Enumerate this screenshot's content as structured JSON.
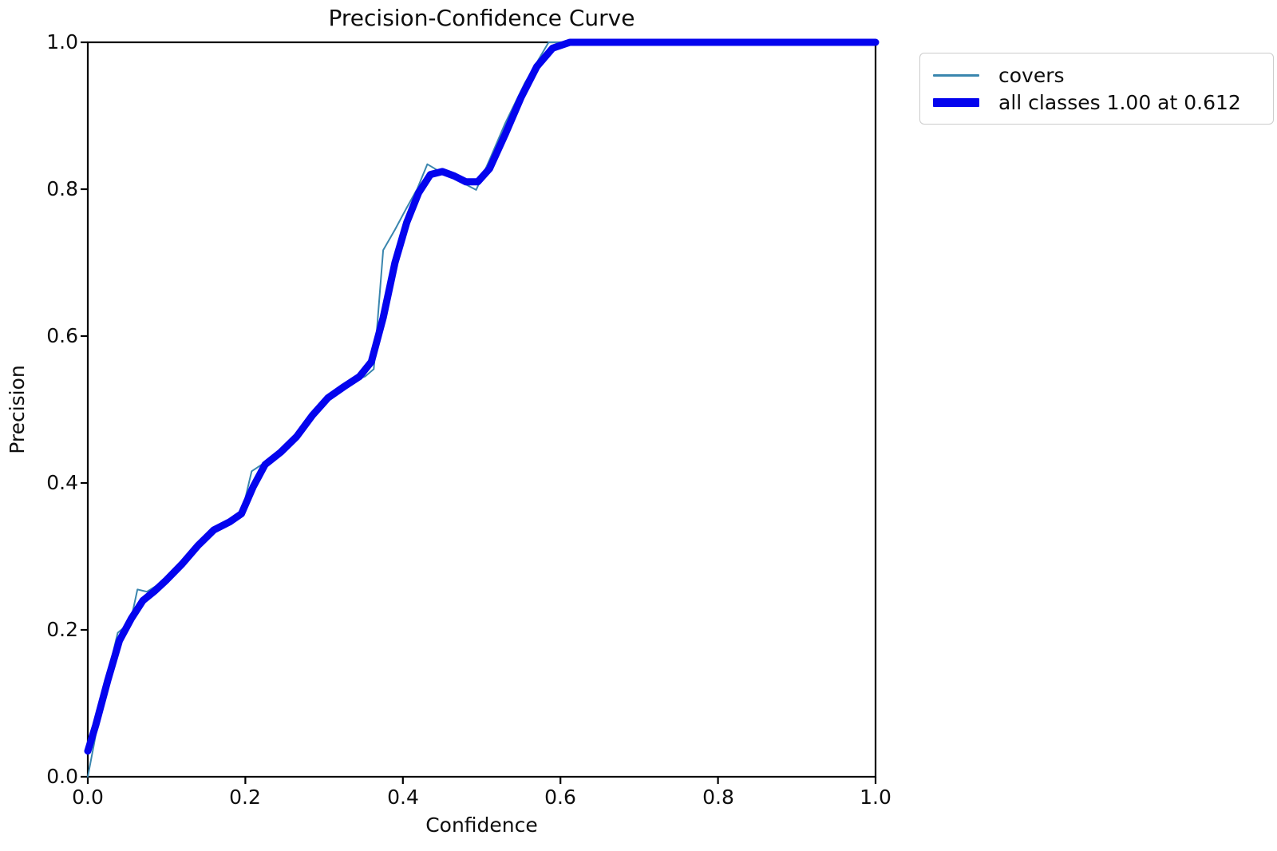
{
  "chart_data": {
    "type": "line",
    "title": "Precision-Confidence Curve",
    "xlabel": "Confidence",
    "ylabel": "Precision",
    "xlim": [
      0.0,
      1.0
    ],
    "ylim": [
      0.0,
      1.0
    ],
    "x_tick_labels": [
      "0.0",
      "0.2",
      "0.4",
      "0.6",
      "0.8",
      "1.0"
    ],
    "y_tick_labels": [
      "0.0",
      "0.2",
      "0.4",
      "0.6",
      "0.8",
      "1.0"
    ],
    "grid": false,
    "legend_position": "outside-top-right",
    "axis_color": "#000000",
    "legend_border_color": "#cccccc",
    "series": [
      {
        "name": "covers",
        "color": "#3a86ae",
        "line_width": 2,
        "points": [
          [
            0.0,
            0.0
          ],
          [
            0.008,
            0.045
          ],
          [
            0.018,
            0.105
          ],
          [
            0.03,
            0.16
          ],
          [
            0.038,
            0.196
          ],
          [
            0.048,
            0.205
          ],
          [
            0.055,
            0.215
          ],
          [
            0.063,
            0.255
          ],
          [
            0.075,
            0.252
          ],
          [
            0.09,
            0.262
          ],
          [
            0.11,
            0.283
          ],
          [
            0.13,
            0.3
          ],
          [
            0.15,
            0.33
          ],
          [
            0.165,
            0.34
          ],
          [
            0.18,
            0.344
          ],
          [
            0.195,
            0.357
          ],
          [
            0.208,
            0.416
          ],
          [
            0.225,
            0.428
          ],
          [
            0.245,
            0.442
          ],
          [
            0.265,
            0.465
          ],
          [
            0.285,
            0.495
          ],
          [
            0.305,
            0.517
          ],
          [
            0.325,
            0.532
          ],
          [
            0.34,
            0.54
          ],
          [
            0.352,
            0.545
          ],
          [
            0.363,
            0.555
          ],
          [
            0.375,
            0.717
          ],
          [
            0.39,
            0.745
          ],
          [
            0.405,
            0.775
          ],
          [
            0.418,
            0.8
          ],
          [
            0.431,
            0.834
          ],
          [
            0.45,
            0.822
          ],
          [
            0.47,
            0.812
          ],
          [
            0.493,
            0.799
          ],
          [
            0.51,
            0.84
          ],
          [
            0.53,
            0.89
          ],
          [
            0.555,
            0.945
          ],
          [
            0.585,
            1.0
          ],
          [
            1.0,
            1.0
          ]
        ]
      },
      {
        "name": "all classes 1.00 at 0.612",
        "color": "#0404ee",
        "line_width": 9,
        "points": [
          [
            0.0,
            0.035
          ],
          [
            0.01,
            0.07
          ],
          [
            0.025,
            0.13
          ],
          [
            0.04,
            0.185
          ],
          [
            0.055,
            0.215
          ],
          [
            0.07,
            0.24
          ],
          [
            0.085,
            0.253
          ],
          [
            0.1,
            0.268
          ],
          [
            0.12,
            0.29
          ],
          [
            0.14,
            0.315
          ],
          [
            0.16,
            0.336
          ],
          [
            0.18,
            0.347
          ],
          [
            0.195,
            0.358
          ],
          [
            0.21,
            0.395
          ],
          [
            0.225,
            0.425
          ],
          [
            0.245,
            0.442
          ],
          [
            0.265,
            0.463
          ],
          [
            0.285,
            0.492
          ],
          [
            0.305,
            0.516
          ],
          [
            0.325,
            0.531
          ],
          [
            0.345,
            0.545
          ],
          [
            0.36,
            0.565
          ],
          [
            0.375,
            0.625
          ],
          [
            0.39,
            0.7
          ],
          [
            0.405,
            0.755
          ],
          [
            0.42,
            0.795
          ],
          [
            0.435,
            0.82
          ],
          [
            0.45,
            0.824
          ],
          [
            0.465,
            0.818
          ],
          [
            0.48,
            0.81
          ],
          [
            0.495,
            0.81
          ],
          [
            0.51,
            0.828
          ],
          [
            0.53,
            0.875
          ],
          [
            0.55,
            0.925
          ],
          [
            0.57,
            0.967
          ],
          [
            0.59,
            0.992
          ],
          [
            0.612,
            1.0
          ],
          [
            1.0,
            1.0
          ]
        ]
      }
    ]
  },
  "layout_note": "precision-confidence curve, no gridlines, full box spines"
}
